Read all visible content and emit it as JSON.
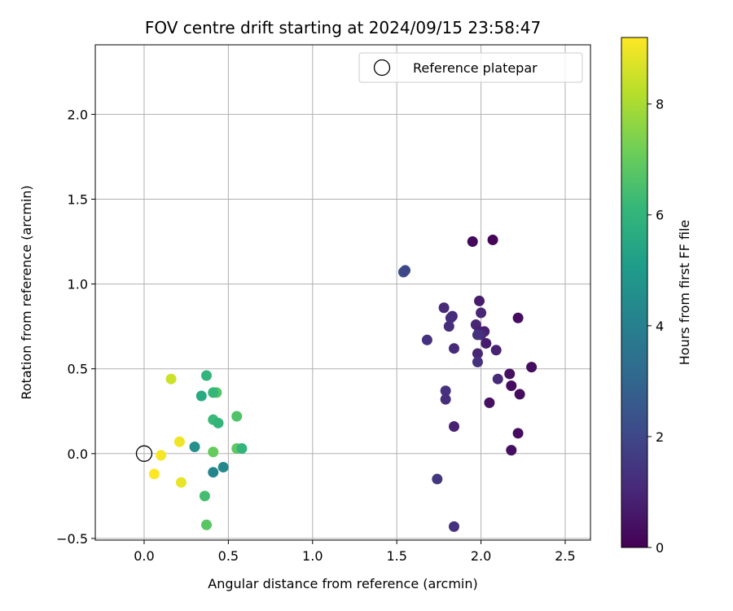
{
  "chart_data": {
    "type": "scatter",
    "title": "FOV centre drift starting at 2024/09/15 23:58:47",
    "xlabel": "Angular distance from reference (arcmin)",
    "ylabel": "Rotation from reference (arcmin)",
    "xlim": [
      -0.29,
      2.65
    ],
    "ylim": [
      -0.51,
      2.41
    ],
    "x_ticks": [
      0.0,
      0.5,
      1.0,
      1.5,
      2.0,
      2.5
    ],
    "x_tick_labels": [
      "0.0",
      "0.5",
      "1.0",
      "1.5",
      "2.0",
      "2.5"
    ],
    "y_ticks": [
      -0.5,
      0.0,
      0.5,
      1.0,
      1.5,
      2.0
    ],
    "y_tick_labels": [
      "−0.5",
      "0.0",
      "0.5",
      "1.0",
      "1.5",
      "2.0"
    ],
    "grid": true,
    "legend": {
      "placement": "top-right",
      "entries": [
        {
          "label": "Reference platepar",
          "marker": "hollow-circle"
        }
      ]
    },
    "reference_point": {
      "x": 0.0,
      "y": 0.0
    },
    "colorbar": {
      "label": "Hours from first FF file",
      "colormap": "viridis",
      "range": [
        0,
        9.2
      ],
      "ticks": [
        0,
        2,
        4,
        6,
        8
      ],
      "tick_labels": [
        "0",
        "2",
        "4",
        "6",
        "8"
      ],
      "stops": [
        "#440154",
        "#482878",
        "#3e4989",
        "#31688e",
        "#26828e",
        "#1f9e89",
        "#35b779",
        "#6ece58",
        "#b5de2b",
        "#fde725"
      ]
    },
    "points": [
      {
        "x": 2.07,
        "y": 1.26,
        "h": 0.1
      },
      {
        "x": 1.95,
        "y": 1.25,
        "h": 0.2
      },
      {
        "x": 2.22,
        "y": 0.8,
        "h": 0.3
      },
      {
        "x": 2.3,
        "y": 0.51,
        "h": 0.3
      },
      {
        "x": 2.17,
        "y": 0.47,
        "h": 0.4
      },
      {
        "x": 2.18,
        "y": 0.4,
        "h": 0.3
      },
      {
        "x": 2.23,
        "y": 0.35,
        "h": 0.3
      },
      {
        "x": 2.05,
        "y": 0.3,
        "h": 0.4
      },
      {
        "x": 2.22,
        "y": 0.12,
        "h": 0.3
      },
      {
        "x": 2.18,
        "y": 0.02,
        "h": 0.4
      },
      {
        "x": 1.99,
        "y": 0.9,
        "h": 0.7
      },
      {
        "x": 2.0,
        "y": 0.83,
        "h": 1.0
      },
      {
        "x": 1.78,
        "y": 0.86,
        "h": 1.1
      },
      {
        "x": 1.83,
        "y": 0.81,
        "h": 1.1
      },
      {
        "x": 1.82,
        "y": 0.8,
        "h": 1.2
      },
      {
        "x": 1.81,
        "y": 0.75,
        "h": 1.2
      },
      {
        "x": 1.97,
        "y": 0.76,
        "h": 1.0
      },
      {
        "x": 2.02,
        "y": 0.72,
        "h": 0.8
      },
      {
        "x": 1.99,
        "y": 0.72,
        "h": 0.8
      },
      {
        "x": 2.0,
        "y": 0.7,
        "h": 1.1
      },
      {
        "x": 1.98,
        "y": 0.7,
        "h": 1.3
      },
      {
        "x": 2.03,
        "y": 0.65,
        "h": 0.7
      },
      {
        "x": 2.09,
        "y": 0.61,
        "h": 0.9
      },
      {
        "x": 1.68,
        "y": 0.67,
        "h": 1.3
      },
      {
        "x": 1.84,
        "y": 0.62,
        "h": 1.1
      },
      {
        "x": 1.98,
        "y": 0.59,
        "h": 1.0
      },
      {
        "x": 1.98,
        "y": 0.54,
        "h": 1.3
      },
      {
        "x": 2.1,
        "y": 0.44,
        "h": 1.1
      },
      {
        "x": 1.79,
        "y": 0.37,
        "h": 1.3
      },
      {
        "x": 1.79,
        "y": 0.32,
        "h": 1.2
      },
      {
        "x": 1.84,
        "y": 0.16,
        "h": 0.9
      },
      {
        "x": 1.74,
        "y": -0.15,
        "h": 1.5
      },
      {
        "x": 1.84,
        "y": -0.43,
        "h": 1.3
      },
      {
        "x": 1.54,
        "y": 1.07,
        "h": 2.2
      },
      {
        "x": 1.55,
        "y": 1.08,
        "h": 2.0
      },
      {
        "x": 0.37,
        "y": 0.46,
        "h": 6.0
      },
      {
        "x": 0.43,
        "y": 0.36,
        "h": 6.7
      },
      {
        "x": 0.41,
        "y": 0.36,
        "h": 6.1
      },
      {
        "x": 0.34,
        "y": 0.34,
        "h": 5.6
      },
      {
        "x": 0.55,
        "y": 0.22,
        "h": 6.6
      },
      {
        "x": 0.41,
        "y": 0.2,
        "h": 6.2
      },
      {
        "x": 0.44,
        "y": 0.18,
        "h": 6.0
      },
      {
        "x": 0.3,
        "y": 0.04,
        "h": 4.6
      },
      {
        "x": 0.41,
        "y": 0.01,
        "h": 7.0
      },
      {
        "x": 0.55,
        "y": 0.03,
        "h": 6.9
      },
      {
        "x": 0.58,
        "y": 0.03,
        "h": 6.0
      },
      {
        "x": 0.47,
        "y": -0.08,
        "h": 4.3
      },
      {
        "x": 0.41,
        "y": -0.11,
        "h": 4.2
      },
      {
        "x": 0.36,
        "y": -0.25,
        "h": 6.4
      },
      {
        "x": 0.37,
        "y": -0.42,
        "h": 6.8
      },
      {
        "x": 0.16,
        "y": 0.44,
        "h": 8.5
      },
      {
        "x": 0.21,
        "y": 0.07,
        "h": 9.0
      },
      {
        "x": 0.1,
        "y": -0.01,
        "h": 9.1
      },
      {
        "x": 0.06,
        "y": -0.12,
        "h": 9.2
      },
      {
        "x": 0.22,
        "y": -0.17,
        "h": 8.9
      }
    ]
  }
}
